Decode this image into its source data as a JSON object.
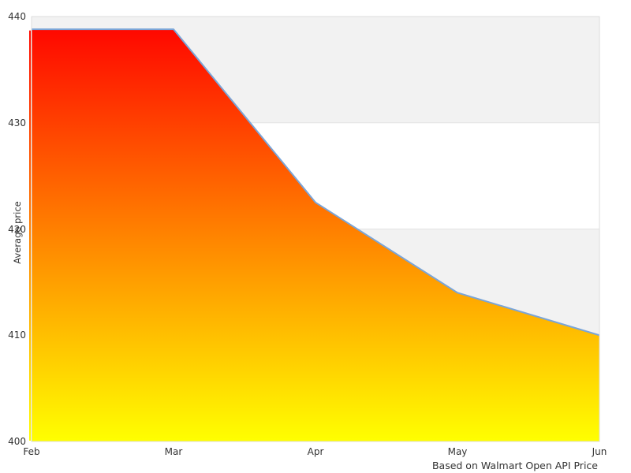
{
  "chart_data": {
    "type": "area",
    "title": "",
    "xlabel": "",
    "ylabel": "Average price",
    "caption": "Based on Walmart Open API Price",
    "x_categories": [
      "Feb",
      "Mar",
      "Apr",
      "May",
      "Jun"
    ],
    "series": [
      {
        "name": "Average price",
        "values": [
          438.8,
          438.8,
          422.5,
          414,
          410
        ]
      }
    ],
    "ylim": [
      400,
      440
    ],
    "yticks": [
      400,
      410,
      420,
      430,
      440
    ],
    "legend": false,
    "grid": "alternating horizontal bands",
    "gray_bands": [
      [
        430,
        440
      ],
      [
        410,
        420
      ]
    ],
    "styles": {
      "line_color": "#7aa5d8",
      "area_gradient_top": "#ff0000",
      "area_gradient_bottom": "#ffff00",
      "band_color": "#f2f2f2",
      "gridline_color": "#e3e3e3",
      "plot_border_color": "#dcdcdc",
      "text_color": "#333333",
      "background": "#ffffff"
    }
  }
}
